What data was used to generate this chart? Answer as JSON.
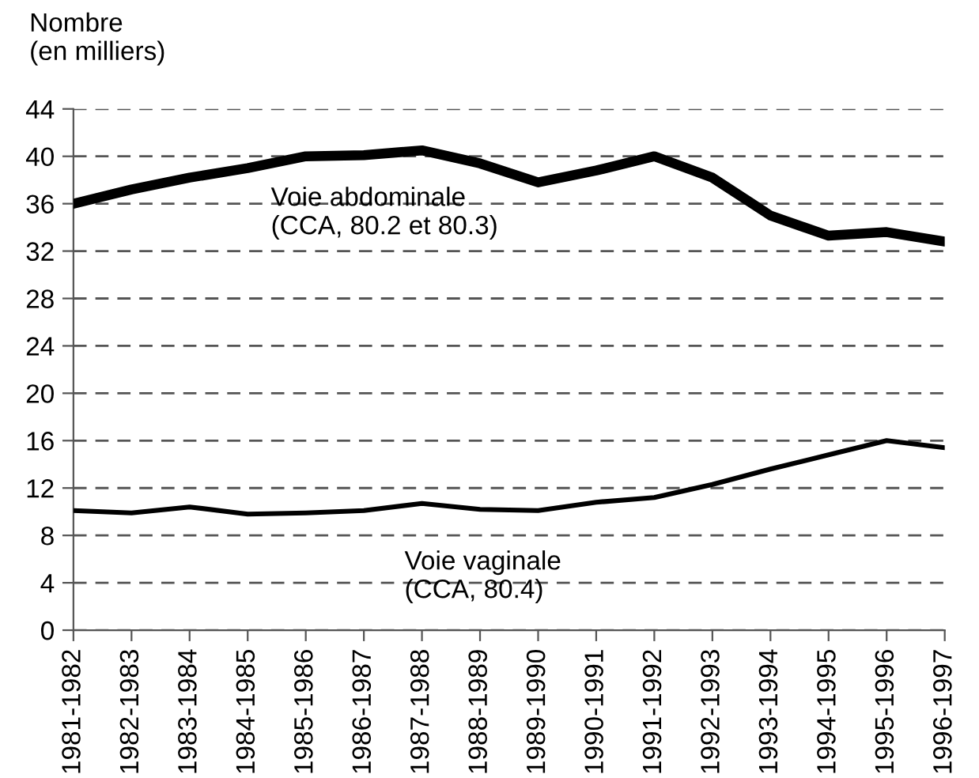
{
  "chart_data": {
    "type": "line",
    "ylabel": "Nombre\n(en milliers)",
    "categories": [
      "1981-1982",
      "1982-1983",
      "1983-1984",
      "1984-1985",
      "1985-1986",
      "1986-1987",
      "1987-1988",
      "1988-1989",
      "1989-1990",
      "1990-1991",
      "1991-1992",
      "1992-1993",
      "1993-1994",
      "1994-1995",
      "1995-1996",
      "1996-1997"
    ],
    "series": [
      {
        "name": "Voie abdominale\n(CCA, 80.2 et 80.3)",
        "color": "#000000",
        "values": [
          36,
          37.2,
          38.2,
          39,
          40,
          40.1,
          40.5,
          39.4,
          37.8,
          38.8,
          40,
          38.2,
          35,
          33.3,
          33.6,
          32.8
        ]
      },
      {
        "name": "Voie vaginale\n(CCA, 80.4)",
        "color": "#000000",
        "values": [
          10.1,
          9.9,
          10.4,
          9.8,
          9.9,
          10.1,
          10.7,
          10.2,
          10.1,
          10.8,
          11.2,
          12.3,
          13.6,
          14.8,
          16,
          15.4
        ]
      }
    ],
    "ylim": [
      0,
      44
    ],
    "yticks": [
      0,
      4,
      8,
      12,
      16,
      20,
      24,
      28,
      32,
      36,
      40,
      44
    ],
    "grid": "y",
    "line_style": "solid",
    "legend": false
  }
}
